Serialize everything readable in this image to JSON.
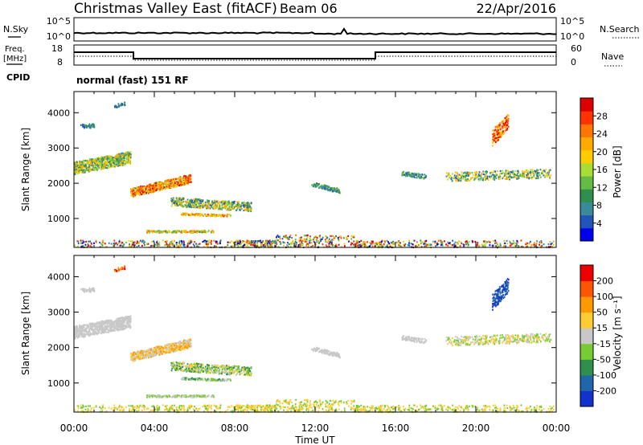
{
  "chart_data": {
    "type": "heatmap",
    "title": "Christmas Valley East (fitACF)",
    "beam_label": "Beam 06",
    "date": "22/Apr/2016",
    "xlabel": "Time UT",
    "ylabel": "Slant Range [km]",
    "x_ticks": [
      "00:00",
      "04:00",
      "08:00",
      "12:00",
      "16:00",
      "20:00",
      "00:00"
    ],
    "y_ticks": [
      "1000",
      "2000",
      "3000",
      "4000"
    ],
    "ylim": [
      180,
      4600
    ],
    "sky_panel": {
      "left_label": "N.Sky",
      "right_label": "N.Search",
      "ticks": [
        "10^5",
        "10^0"
      ]
    },
    "freq_panel": {
      "left_label_1": "Freq.",
      "left_label_2": "[MHz]",
      "left_ticks": [
        "18",
        "8"
      ],
      "right_ticks": [
        "60",
        "0"
      ],
      "right_label": "Nave"
    },
    "cpid_panel": {
      "label": "CPID",
      "text": "normal (fast) 151 RF"
    },
    "power_colorbar": {
      "label": "Power [dB]",
      "ticks": [
        "4",
        "8",
        "12",
        "16",
        "20",
        "24",
        "28"
      ],
      "colors": [
        "#0000ee",
        "#2255bb",
        "#3a8a9a",
        "#2f8f4f",
        "#66bb44",
        "#aadd33",
        "#ffcc00",
        "#ffaa00",
        "#ff7700",
        "#ff3300",
        "#dd0000"
      ]
    },
    "velocity_colorbar": {
      "label": "Velocity [m s⁻¹]",
      "ticks": [
        "200",
        "100",
        "50",
        "15",
        "-15",
        "-50",
        "-100",
        "-200"
      ],
      "colors": [
        "#1133cc",
        "#2266aa",
        "#2f8f4f",
        "#77cc33",
        "#c8c8c8",
        "#ffcc33",
        "#ff9900",
        "#ff5500",
        "#ee0000"
      ]
    }
  }
}
